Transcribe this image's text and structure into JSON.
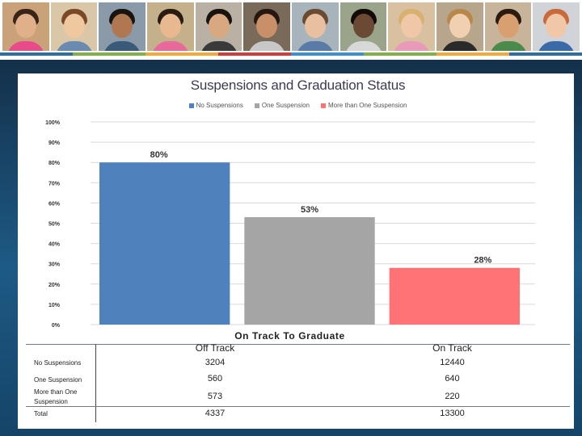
{
  "header": {
    "photo_icons": [
      "student-photo-icon",
      "student-photo-icon",
      "student-photo-icon",
      "student-photo-icon",
      "student-photo-icon",
      "student-photo-icon",
      "student-photo-icon",
      "student-photo-icon",
      "student-photo-icon",
      "student-photo-icon",
      "student-photo-icon",
      "student-photo-icon"
    ],
    "stripe_colors": [
      "#2f6ea3",
      "#7fb04a",
      "#f0a93a",
      "#d23b3b",
      "#3b8fd2",
      "#7fb04a",
      "#f0a93a",
      "#2f6ea3"
    ]
  },
  "chart_data": {
    "type": "bar",
    "title": "Suspensions and Graduation Status",
    "xlabel": "On Track To Graduate",
    "ylabel": "",
    "ylim": [
      0,
      100
    ],
    "yticks": [
      "0%",
      "10%",
      "20%",
      "30%",
      "40%",
      "50%",
      "60%",
      "70%",
      "80%",
      "90%",
      "100%"
    ],
    "grid": true,
    "legend_position": "top-center",
    "series": [
      {
        "name": "No Suspensions",
        "value": 80,
        "label": "80%",
        "color": "#4f81bd"
      },
      {
        "name": "One Suspension",
        "value": 53,
        "label": "53%",
        "color": "#a5a5a5"
      },
      {
        "name": "More than One Suspension",
        "value": 28,
        "label": "28%",
        "color": "#ff7276"
      }
    ]
  },
  "table": {
    "columns": [
      "Off Track",
      "On Track"
    ],
    "rows": [
      {
        "label": "No Suspensions",
        "off": "3204",
        "on": "12440"
      },
      {
        "label": "One Suspension",
        "off": "560",
        "on": "640"
      },
      {
        "label": "More than One Suspension",
        "off": "573",
        "on": "220"
      },
      {
        "label": "Total",
        "off": "4337",
        "on": "13300"
      }
    ]
  }
}
